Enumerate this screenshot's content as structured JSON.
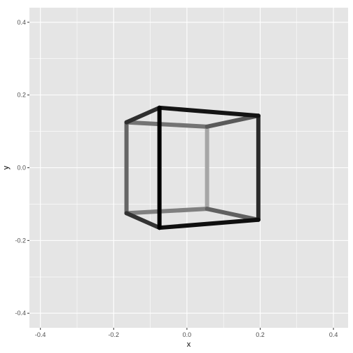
{
  "chart_data": {
    "type": "line",
    "title": "",
    "xlabel": "x",
    "ylabel": "y",
    "xlim": [
      -0.43,
      0.44
    ],
    "ylim": [
      -0.44,
      0.44
    ],
    "x_ticks": [
      -0.4,
      -0.2,
      0.0,
      0.2,
      0.4
    ],
    "y_ticks": [
      -0.4,
      -0.2,
      0.0,
      0.2,
      0.4
    ],
    "x_tick_labels": [
      "-0.4",
      "-0.2",
      "0.0",
      "0.2",
      "0.4"
    ],
    "y_tick_labels": [
      "-0.4",
      "-0.2",
      "0.0",
      "0.2",
      "0.4"
    ],
    "grid": true,
    "legend": "none",
    "panel_background": "#e5e5e5",
    "grid_color": "#ffffff",
    "segments": [
      {
        "x": [
          -0.075,
          0.195
        ],
        "y": [
          0.165,
          0.143
        ],
        "shade": 0.08
      },
      {
        "x": [
          -0.075,
          -0.165
        ],
        "y": [
          0.165,
          0.125
        ],
        "shade": 0.18
      },
      {
        "x": [
          -0.075,
          -0.075
        ],
        "y": [
          0.165,
          -0.165
        ],
        "shade": 0.0
      },
      {
        "x": [
          0.195,
          0.195
        ],
        "y": [
          0.143,
          -0.143
        ],
        "shade": 0.17
      },
      {
        "x": [
          -0.075,
          0.195
        ],
        "y": [
          -0.165,
          -0.143
        ],
        "shade": 0.06
      },
      {
        "x": [
          -0.165,
          -0.075
        ],
        "y": [
          -0.125,
          -0.165
        ],
        "shade": 0.2
      },
      {
        "x": [
          0.195,
          0.055
        ],
        "y": [
          0.143,
          0.113
        ],
        "shade": 0.35
      },
      {
        "x": [
          -0.165,
          0.055
        ],
        "y": [
          0.125,
          0.113
        ],
        "shade": 0.45
      },
      {
        "x": [
          -0.165,
          -0.165
        ],
        "y": [
          0.125,
          -0.125
        ],
        "shade": 0.4
      },
      {
        "x": [
          0.195,
          0.055
        ],
        "y": [
          -0.143,
          -0.113
        ],
        "shade": 0.38
      },
      {
        "x": [
          -0.165,
          0.055
        ],
        "y": [
          -0.125,
          -0.113
        ],
        "shade": 0.5
      },
      {
        "x": [
          0.055,
          0.055
        ],
        "y": [
          0.113,
          -0.113
        ],
        "shade": 0.65
      }
    ]
  }
}
